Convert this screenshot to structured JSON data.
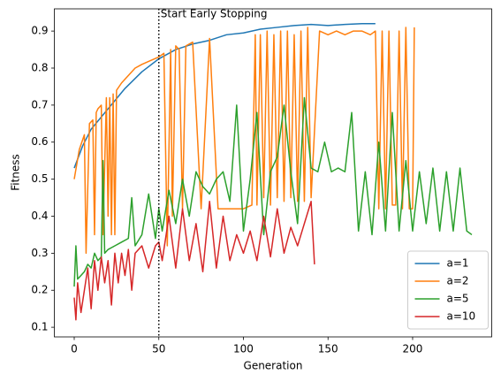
{
  "chart_data": {
    "type": "line",
    "xlabel": "Generation",
    "ylabel": "Fitness",
    "annotation": "Start Early Stopping",
    "vline": 50,
    "xlim": [
      -11.75,
      246.75
    ],
    "xticks": [
      0,
      50,
      100,
      150,
      200
    ],
    "ylim": [
      0.074,
      0.96
    ],
    "yticks": [
      0.1,
      0.2,
      0.3,
      0.4,
      0.5,
      0.6,
      0.7,
      0.8,
      0.9
    ],
    "legend": "lower right",
    "series": [
      {
        "name": "a=1",
        "color": "#1f77b4",
        "x": [
          0,
          5,
          10,
          20,
          30,
          40,
          50,
          60,
          70,
          80,
          90,
          100,
          110,
          120,
          130,
          140,
          150,
          160,
          170,
          178
        ],
        "values": [
          0.53,
          0.59,
          0.635,
          0.69,
          0.745,
          0.79,
          0.825,
          0.85,
          0.865,
          0.875,
          0.89,
          0.895,
          0.905,
          0.91,
          0.915,
          0.918,
          0.915,
          0.918,
          0.92,
          0.92
        ]
      },
      {
        "name": "a=2",
        "color": "#ff7f0e",
        "x": [
          0,
          3,
          6,
          7,
          9,
          11,
          12,
          13,
          14,
          16,
          17,
          19,
          20,
          21,
          22,
          23,
          24,
          25,
          28,
          32,
          36,
          40,
          45,
          50,
          53,
          55,
          57,
          58,
          60,
          62,
          64,
          66,
          70,
          75,
          80,
          85,
          90,
          95,
          100,
          105,
          107,
          108,
          110,
          112,
          114,
          116,
          118,
          120,
          122,
          124,
          126,
          128,
          130,
          132,
          134,
          136,
          138,
          140,
          145,
          150,
          155,
          160,
          165,
          170,
          175,
          178,
          180,
          182,
          184,
          186,
          188,
          190,
          192,
          194,
          196,
          198,
          200,
          201
        ],
        "values": [
          0.5,
          0.58,
          0.62,
          0.3,
          0.65,
          0.66,
          0.35,
          0.68,
          0.69,
          0.7,
          0.35,
          0.72,
          0.4,
          0.72,
          0.35,
          0.73,
          0.35,
          0.74,
          0.76,
          0.78,
          0.8,
          0.81,
          0.82,
          0.83,
          0.84,
          0.32,
          0.85,
          0.4,
          0.86,
          0.85,
          0.42,
          0.86,
          0.87,
          0.42,
          0.88,
          0.42,
          0.42,
          0.42,
          0.42,
          0.43,
          0.89,
          0.43,
          0.89,
          0.45,
          0.9,
          0.43,
          0.89,
          0.45,
          0.9,
          0.44,
          0.9,
          0.45,
          0.89,
          0.44,
          0.9,
          0.44,
          0.91,
          0.45,
          0.9,
          0.89,
          0.9,
          0.89,
          0.9,
          0.9,
          0.89,
          0.9,
          0.42,
          0.9,
          0.42,
          0.9,
          0.43,
          0.43,
          0.9,
          0.42,
          0.91,
          0.42,
          0.42,
          0.91
        ]
      },
      {
        "name": "a=5",
        "color": "#2ca02c",
        "x": [
          0,
          1,
          2,
          4,
          6,
          8,
          10,
          12,
          14,
          16,
          17,
          18,
          20,
          24,
          28,
          32,
          34,
          36,
          40,
          44,
          48,
          50,
          52,
          56,
          60,
          64,
          68,
          72,
          76,
          80,
          84,
          88,
          92,
          96,
          100,
          104,
          108,
          110,
          112,
          116,
          120,
          124,
          128,
          132,
          136,
          140,
          144,
          148,
          152,
          156,
          160,
          164,
          168,
          172,
          176,
          180,
          184,
          188,
          192,
          196,
          200,
          204,
          208,
          212,
          216,
          220,
          224,
          228,
          232,
          235
        ],
        "values": [
          0.21,
          0.32,
          0.23,
          0.24,
          0.25,
          0.27,
          0.26,
          0.3,
          0.28,
          0.29,
          0.55,
          0.3,
          0.31,
          0.32,
          0.33,
          0.34,
          0.45,
          0.32,
          0.35,
          0.46,
          0.34,
          0.42,
          0.36,
          0.47,
          0.38,
          0.5,
          0.4,
          0.52,
          0.48,
          0.46,
          0.5,
          0.52,
          0.44,
          0.7,
          0.36,
          0.5,
          0.68,
          0.51,
          0.35,
          0.52,
          0.56,
          0.7,
          0.52,
          0.38,
          0.72,
          0.53,
          0.52,
          0.6,
          0.52,
          0.53,
          0.52,
          0.68,
          0.36,
          0.52,
          0.35,
          0.6,
          0.36,
          0.68,
          0.36,
          0.55,
          0.36,
          0.52,
          0.38,
          0.53,
          0.36,
          0.52,
          0.36,
          0.53,
          0.36,
          0.35
        ]
      },
      {
        "name": "a=10",
        "color": "#d62728",
        "x": [
          0,
          1,
          2,
          4,
          6,
          8,
          10,
          12,
          14,
          16,
          18,
          20,
          22,
          24,
          26,
          28,
          30,
          32,
          34,
          36,
          40,
          44,
          48,
          50,
          52,
          56,
          60,
          64,
          68,
          72,
          76,
          80,
          84,
          88,
          92,
          96,
          100,
          104,
          108,
          112,
          116,
          120,
          124,
          128,
          132,
          136,
          140,
          142
        ],
        "values": [
          0.18,
          0.12,
          0.22,
          0.14,
          0.2,
          0.26,
          0.15,
          0.28,
          0.2,
          0.29,
          0.22,
          0.28,
          0.16,
          0.3,
          0.22,
          0.3,
          0.24,
          0.31,
          0.2,
          0.3,
          0.32,
          0.26,
          0.32,
          0.33,
          0.28,
          0.4,
          0.26,
          0.42,
          0.28,
          0.38,
          0.25,
          0.44,
          0.26,
          0.4,
          0.28,
          0.35,
          0.3,
          0.36,
          0.28,
          0.4,
          0.29,
          0.42,
          0.3,
          0.37,
          0.32,
          0.38,
          0.44,
          0.27
        ]
      }
    ]
  }
}
